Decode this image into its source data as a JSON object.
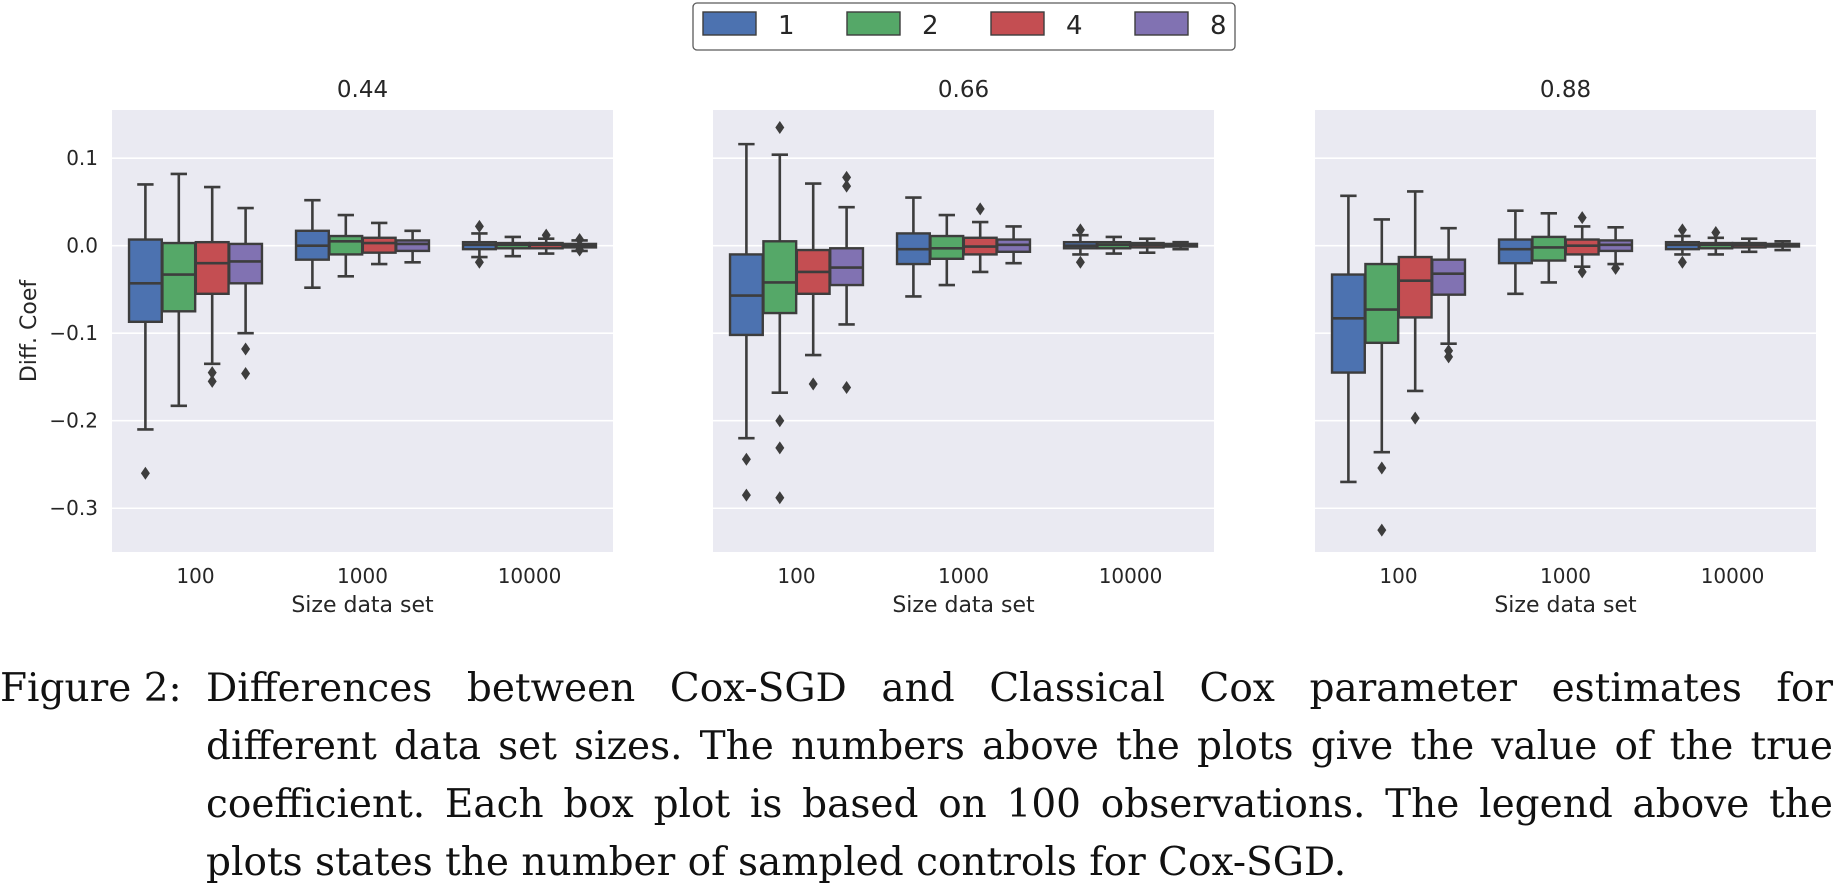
{
  "legend": {
    "title": "",
    "entries": [
      "1",
      "2",
      "4",
      "8"
    ]
  },
  "chart_data": [
    {
      "type": "box",
      "title": "0.44",
      "xlabel": "Size data set",
      "ylabel": "Diff. Coef",
      "categories": [
        "100",
        "1000",
        "10000"
      ],
      "ylim": [
        -0.35,
        0.155
      ],
      "yticks": [
        0.1,
        0.0,
        -0.1,
        -0.2,
        -0.3
      ],
      "ytick_labels": [
        "0.1",
        "0.0",
        "−0.1",
        "−0.2",
        "−0.3"
      ],
      "grid": true,
      "series": [
        {
          "name": "1",
          "color": "#4c72b0",
          "boxes": [
            {
              "whislo": -0.21,
              "q1": -0.087,
              "med": -0.043,
              "q3": 0.007,
              "whishi": 0.07,
              "fliers": [
                -0.26
              ]
            },
            {
              "whislo": -0.048,
              "q1": -0.016,
              "med": 0.0,
              "q3": 0.017,
              "whishi": 0.052,
              "fliers": []
            },
            {
              "whislo": -0.013,
              "q1": -0.004,
              "med": 0.001,
              "q3": 0.004,
              "whishi": 0.014,
              "fliers": [
                0.022,
                -0.019
              ]
            }
          ]
        },
        {
          "name": "2",
          "color": "#55a868",
          "boxes": [
            {
              "whislo": -0.183,
              "q1": -0.075,
              "med": -0.033,
              "q3": 0.003,
              "whishi": 0.082,
              "fliers": []
            },
            {
              "whislo": -0.035,
              "q1": -0.01,
              "med": 0.005,
              "q3": 0.011,
              "whishi": 0.035,
              "fliers": []
            },
            {
              "whislo": -0.012,
              "q1": -0.003,
              "med": 0.001,
              "q3": 0.003,
              "whishi": 0.01,
              "fliers": []
            }
          ]
        },
        {
          "name": "4",
          "color": "#c44e52",
          "boxes": [
            {
              "whislo": -0.135,
              "q1": -0.055,
              "med": -0.02,
              "q3": 0.004,
              "whishi": 0.067,
              "fliers": [
                -0.145,
                -0.155
              ]
            },
            {
              "whislo": -0.021,
              "q1": -0.008,
              "med": 0.003,
              "q3": 0.009,
              "whishi": 0.026,
              "fliers": []
            },
            {
              "whislo": -0.009,
              "q1": -0.003,
              "med": 0.001,
              "q3": 0.003,
              "whishi": 0.008,
              "fliers": [
                0.012
              ]
            }
          ]
        },
        {
          "name": "8",
          "color": "#8172b2",
          "boxes": [
            {
              "whislo": -0.1,
              "q1": -0.043,
              "med": -0.018,
              "q3": 0.002,
              "whishi": 0.043,
              "fliers": [
                -0.118,
                -0.146
              ]
            },
            {
              "whislo": -0.019,
              "q1": -0.006,
              "med": 0.002,
              "q3": 0.006,
              "whishi": 0.017,
              "fliers": []
            },
            {
              "whislo": -0.006,
              "q1": -0.002,
              "med": 0.0,
              "q3": 0.002,
              "whishi": 0.006,
              "fliers": [
                0.007,
                -0.005
              ]
            }
          ]
        }
      ]
    },
    {
      "type": "box",
      "title": "0.66",
      "xlabel": "Size data set",
      "ylabel": "",
      "categories": [
        "100",
        "1000",
        "10000"
      ],
      "ylim": [
        -0.35,
        0.155
      ],
      "yticks": [
        0.1,
        0.0,
        -0.1,
        -0.2,
        -0.3
      ],
      "ytick_labels": [],
      "grid": true,
      "series": [
        {
          "name": "1",
          "color": "#4c72b0",
          "boxes": [
            {
              "whislo": -0.22,
              "q1": -0.102,
              "med": -0.057,
              "q3": -0.01,
              "whishi": 0.116,
              "fliers": [
                -0.244,
                -0.285
              ]
            },
            {
              "whislo": -0.058,
              "q1": -0.021,
              "med": -0.004,
              "q3": 0.014,
              "whishi": 0.055,
              "fliers": []
            },
            {
              "whislo": -0.01,
              "q1": -0.003,
              "med": 0.0,
              "q3": 0.004,
              "whishi": 0.012,
              "fliers": [
                0.018,
                -0.019
              ]
            }
          ]
        },
        {
          "name": "2",
          "color": "#55a868",
          "boxes": [
            {
              "whislo": -0.168,
              "q1": -0.077,
              "med": -0.042,
              "q3": 0.005,
              "whishi": 0.104,
              "fliers": [
                0.135,
                -0.2,
                -0.231,
                -0.288
              ]
            },
            {
              "whislo": -0.045,
              "q1": -0.015,
              "med": -0.003,
              "q3": 0.011,
              "whishi": 0.035,
              "fliers": []
            },
            {
              "whislo": -0.009,
              "q1": -0.003,
              "med": 0.001,
              "q3": 0.004,
              "whishi": 0.01,
              "fliers": []
            }
          ]
        },
        {
          "name": "4",
          "color": "#c44e52",
          "boxes": [
            {
              "whislo": -0.125,
              "q1": -0.055,
              "med": -0.03,
              "q3": -0.005,
              "whishi": 0.071,
              "fliers": [
                -0.158
              ]
            },
            {
              "whislo": -0.03,
              "q1": -0.01,
              "med": -0.001,
              "q3": 0.009,
              "whishi": 0.027,
              "fliers": [
                0.042
              ]
            },
            {
              "whislo": -0.008,
              "q1": -0.002,
              "med": 0.001,
              "q3": 0.003,
              "whishi": 0.008,
              "fliers": []
            }
          ]
        },
        {
          "name": "8",
          "color": "#8172b2",
          "boxes": [
            {
              "whislo": -0.09,
              "q1": -0.045,
              "med": -0.025,
              "q3": -0.003,
              "whishi": 0.044,
              "fliers": [
                0.078,
                0.068,
                -0.162
              ]
            },
            {
              "whislo": -0.02,
              "q1": -0.007,
              "med": 0.001,
              "q3": 0.007,
              "whishi": 0.022,
              "fliers": []
            },
            {
              "whislo": -0.004,
              "q1": -0.001,
              "med": 0.0,
              "q3": 0.002,
              "whishi": 0.004,
              "fliers": []
            }
          ]
        }
      ]
    },
    {
      "type": "box",
      "title": "0.88",
      "xlabel": "Size data set",
      "ylabel": "",
      "categories": [
        "100",
        "1000",
        "10000"
      ],
      "ylim": [
        -0.35,
        0.155
      ],
      "yticks": [
        0.1,
        0.0,
        -0.1,
        -0.2,
        -0.3
      ],
      "ytick_labels": [],
      "grid": true,
      "series": [
        {
          "name": "1",
          "color": "#4c72b0",
          "boxes": [
            {
              "whislo": -0.27,
              "q1": -0.145,
              "med": -0.083,
              "q3": -0.033,
              "whishi": 0.057,
              "fliers": []
            },
            {
              "whislo": -0.055,
              "q1": -0.02,
              "med": -0.004,
              "q3": 0.007,
              "whishi": 0.04,
              "fliers": []
            },
            {
              "whislo": -0.01,
              "q1": -0.004,
              "med": 0.001,
              "q3": 0.004,
              "whishi": 0.011,
              "fliers": [
                0.018,
                -0.019
              ]
            }
          ]
        },
        {
          "name": "2",
          "color": "#55a868",
          "boxes": [
            {
              "whislo": -0.236,
              "q1": -0.111,
              "med": -0.073,
              "q3": -0.021,
              "whishi": 0.03,
              "fliers": [
                -0.254,
                -0.325
              ]
            },
            {
              "whislo": -0.042,
              "q1": -0.017,
              "med": -0.002,
              "q3": 0.01,
              "whishi": 0.037,
              "fliers": []
            },
            {
              "whislo": -0.01,
              "q1": -0.003,
              "med": 0.001,
              "q3": 0.003,
              "whishi": 0.009,
              "fliers": [
                0.015
              ]
            }
          ]
        },
        {
          "name": "4",
          "color": "#c44e52",
          "boxes": [
            {
              "whislo": -0.166,
              "q1": -0.082,
              "med": -0.04,
              "q3": -0.013,
              "whishi": 0.062,
              "fliers": [
                -0.197
              ]
            },
            {
              "whislo": -0.024,
              "q1": -0.01,
              "med": 0.0,
              "q3": 0.007,
              "whishi": 0.022,
              "fliers": [
                0.032,
                -0.03
              ]
            },
            {
              "whislo": -0.007,
              "q1": -0.002,
              "med": 0.001,
              "q3": 0.003,
              "whishi": 0.008,
              "fliers": []
            }
          ]
        },
        {
          "name": "8",
          "color": "#8172b2",
          "boxes": [
            {
              "whislo": -0.112,
              "q1": -0.056,
              "med": -0.032,
              "q3": -0.016,
              "whishi": 0.02,
              "fliers": [
                -0.12,
                -0.127
              ]
            },
            {
              "whislo": -0.021,
              "q1": -0.006,
              "med": 0.001,
              "q3": 0.006,
              "whishi": 0.021,
              "fliers": [
                -0.026
              ]
            },
            {
              "whislo": -0.005,
              "q1": -0.001,
              "med": 0.0,
              "q3": 0.002,
              "whishi": 0.005,
              "fliers": []
            }
          ]
        }
      ]
    }
  ],
  "caption": {
    "label": "Figure 2:",
    "text": "Differences between Cox-SGD and Classical Cox parameter estimates for different data set sizes. The numbers above the plots give the value of the true coefficient. Each box plot is based on 100 observations. The legend above the plots states the number of sampled controls for Cox-SGD."
  }
}
